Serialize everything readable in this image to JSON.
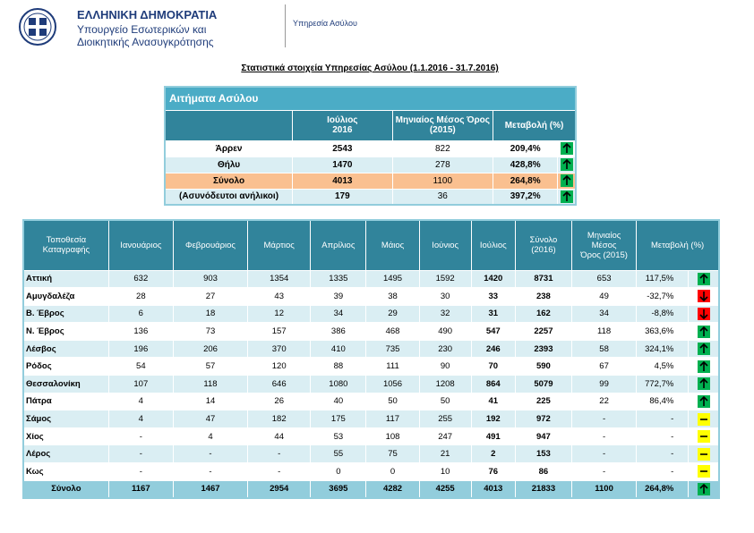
{
  "header": {
    "org": "ΕΛΛΗΝΙΚΗ ΔΗΜΟΚΡΑΤΙΑ",
    "ministry": [
      "Υπουργείο Εσωτερικών και",
      "Διοικητικής Ανασυγκρότησης"
    ],
    "service": "Υπηρεσία Ασύλου"
  },
  "title": "Στατιστικά στοιχεία Υπηρεσίας Ασύλου (1.1.2016 - 31.7.2016)",
  "table1": {
    "title": "Αιτήματα Ασύλου",
    "columns": [
      "Ιούλιος\n2016",
      "Μηνιαίος Μέσος Όρος (2015)",
      "Μεταβολή (%)"
    ],
    "rows": [
      {
        "label": "Άρρεν",
        "values": [
          "2543",
          "822",
          "209,4%"
        ]
      },
      {
        "label": "Θήλυ",
        "values": [
          "1470",
          "278",
          "428,8%"
        ]
      },
      {
        "label": "Σύνολο",
        "values": [
          "4013",
          "1100",
          "264,8%"
        ]
      },
      {
        "label": "(Ασυνόδευτοι ανήλικοι)",
        "values": [
          "179",
          "36",
          "397,2%"
        ]
      }
    ]
  },
  "table2": {
    "columns": [
      "Τοποθεσία\nΚαταγραφής",
      "Ιανουάριος",
      "Φεβρουάριος",
      "Μάρτιος",
      "Απρίλιος",
      "Μάιος",
      "Ιούνιος",
      "Ιούλιος",
      "Σύνολο\n(2016)",
      "Μηνιαίος\nΜέσος\nΌρος (2015)",
      "Μεταβολή (%)"
    ],
    "rows": [
      {
        "label": "Αττική",
        "values": [
          "632",
          "903",
          "1354",
          "1335",
          "1495",
          "1592",
          "1420",
          "8731",
          "653",
          "117,5%"
        ]
      },
      {
        "label": "Αμυγδαλέζα",
        "values": [
          "28",
          "27",
          "43",
          "39",
          "38",
          "30",
          "33",
          "238",
          "49",
          "-32,7%"
        ]
      },
      {
        "label": "Β. Έβρος",
        "values": [
          "6",
          "18",
          "12",
          "34",
          "29",
          "32",
          "31",
          "162",
          "34",
          "-8,8%"
        ]
      },
      {
        "label": "Ν. Έβρος",
        "values": [
          "136",
          "73",
          "157",
          "386",
          "468",
          "490",
          "547",
          "2257",
          "118",
          "363,6%"
        ]
      },
      {
        "label": "Λέσβος",
        "values": [
          "196",
          "206",
          "370",
          "410",
          "735",
          "230",
          "246",
          "2393",
          "58",
          "324,1%"
        ]
      },
      {
        "label": "Ρόδος",
        "values": [
          "54",
          "57",
          "120",
          "88",
          "111",
          "90",
          "70",
          "590",
          "67",
          "4,5%"
        ]
      },
      {
        "label": "Θεσσαλονίκη",
        "values": [
          "107",
          "118",
          "646",
          "1080",
          "1056",
          "1208",
          "864",
          "5079",
          "99",
          "772,7%"
        ]
      },
      {
        "label": "Πάτρα",
        "values": [
          "4",
          "14",
          "26",
          "40",
          "50",
          "50",
          "41",
          "225",
          "22",
          "86,4%"
        ]
      },
      {
        "label": "Σάμος",
        "values": [
          "4",
          "47",
          "182",
          "175",
          "117",
          "255",
          "192",
          "972",
          "-",
          "-"
        ]
      },
      {
        "label": "Χίος",
        "values": [
          "-",
          "4",
          "44",
          "53",
          "108",
          "247",
          "491",
          "947",
          "-",
          "-"
        ]
      },
      {
        "label": "Λέρος",
        "values": [
          "-",
          "-",
          "-",
          "55",
          "75",
          "21",
          "2",
          "153",
          "-",
          "-"
        ]
      },
      {
        "label": "Κως",
        "values": [
          "-",
          "-",
          "-",
          "0",
          "0",
          "10",
          "76",
          "86",
          "-",
          "-"
        ]
      }
    ],
    "total": {
      "label": "Σύνολο",
      "values": [
        "1167",
        "1467",
        "2954",
        "3695",
        "4282",
        "4255",
        "4013",
        "21833",
        "1100",
        "264,8%"
      ]
    }
  }
}
